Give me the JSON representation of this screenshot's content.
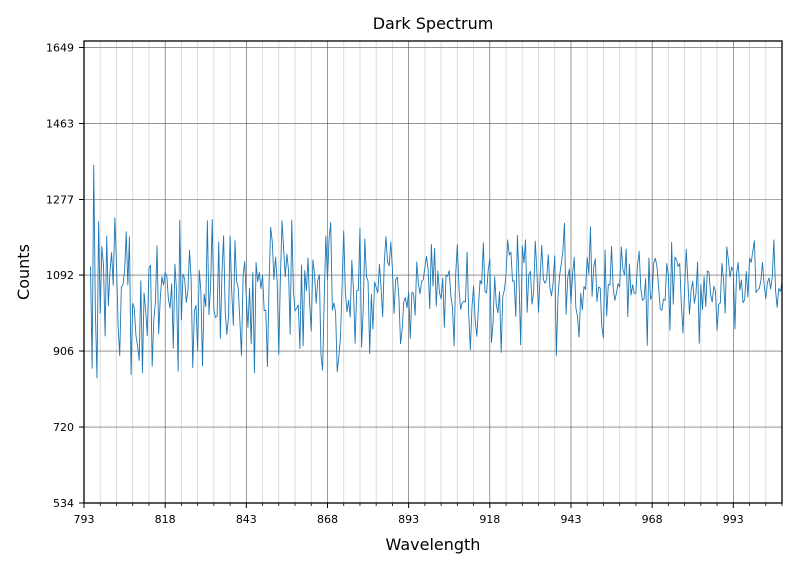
{
  "chart_data": {
    "type": "line",
    "title": "Dark Spectrum",
    "xlabel": "Wavelength",
    "ylabel": "Counts",
    "xlim": [
      793,
      1008
    ],
    "ylim": [
      534,
      1665
    ],
    "x_ticks": [
      793,
      818,
      843,
      868,
      893,
      918,
      943,
      968,
      993
    ],
    "y_ticks": [
      534,
      720,
      906,
      1092,
      1277,
      1463,
      1649
    ],
    "major_grid": true,
    "minor_grid": true,
    "minor_x_step": 5,
    "series": [
      {
        "color": "#1f77b4",
        "x_start": 795,
        "x_step": 0.5,
        "values": [
          1113,
          864,
          1361,
          1005,
          840,
          1223,
          999,
          1162,
          1117,
          943,
          1188,
          1017,
          1100,
          1147,
          1067,
          1232,
          1122,
          967,
          895,
          1062,
          1068,
          1102,
          1198,
          1068,
          1186,
          848,
          1023,
          1011,
          944,
          919,
          883,
          1078,
          853,
          1048,
          1004,
          944,
          1108,
          1116,
          869,
          982,
          1026,
          1164,
          948,
          1036,
          1088,
          1068,
          1098,
          1091,
          1033,
          1011,
          1071,
          913,
          1119,
          1054,
          857,
          1227,
          982,
          1094,
          1083,
          1025,
          1053,
          1153,
          1082,
          865,
          1005,
          1018,
          907,
          1104,
          1054,
          870,
          1045,
          1015,
          1225,
          995,
          1067,
          1228,
          1007,
          988,
          991,
          1173,
          937,
          1097,
          1188,
          1003,
          947,
          989,
          1187,
          1052,
          969,
          1176,
          1076,
          1061,
          983,
          895,
          1089,
          1125,
          1034,
          964,
          1060,
          924,
          1098,
          853,
          1123,
          1076,
          1099,
          1059,
          1091,
          1005,
          1006,
          868,
          1067,
          1209,
          1173,
          1081,
          1136,
          1076,
          898,
          1087,
          1225,
          1155,
          1088,
          1143,
          1104,
          947,
          1227,
          1053,
          1004,
          1011,
          1019,
          912,
          1116,
          919,
          1103,
          1054,
          1134,
          1023,
          955,
          1129,
          1095,
          1023,
          1079,
          1093,
          896,
          859,
          1037,
          1188,
          1081,
          1180,
          1221,
          1006,
          1024,
          1000,
          855,
          893,
          938,
          1066,
          1200,
          1052,
          1002,
          1030,
          989,
          1128,
          1057,
          925,
          1054,
          1054,
          1206,
          916,
          1004,
          1180,
          1088,
          1077,
          900,
          1045,
          960,
          1075,
          1062,
          1049,
          1118,
          1062,
          990,
          1124,
          1186,
          1124,
          1115,
          1173,
          1107,
          998,
          1081,
          1087,
          1038,
          924,
          959,
          1027,
          1037,
          1012,
          1050,
          937,
          1050,
          1047,
          994,
          1124,
          1071,
          1046,
          1077,
          1081,
          1111,
          1138,
          1105,
          1010,
          1167,
          1065,
          1157,
          1016,
          1102,
          1049,
          1034,
          1084,
          964,
          1091,
          1089,
          1103,
          1041,
          1012,
          919,
          1096,
          1167,
          1061,
          1008,
          1024,
          1028,
          1026,
          1148,
          996,
          909,
          1013,
          1065,
          980,
          942,
          1014,
          1079,
          1070,
          1171,
          1052,
          1048,
          1104,
          1132,
          927,
          975,
          1088,
          1019,
          1000,
          1051,
          903,
          1040,
          1056,
          1094,
          1178,
          1141,
          1148,
          1077,
          1078,
          991,
          1189,
          1078,
          921,
          1164,
          1122,
          1178,
          1001,
          1093,
          1101,
          1021,
          1050,
          1175,
          1100,
          1001,
          1089,
          1165,
          1081,
          1072,
          1081,
          1142,
          1062,
          1041,
          1073,
          1139,
          895,
          1039,
          1091,
          1119,
          1149,
          1219,
          996,
          1085,
          1107,
          1023,
          1096,
          1135,
          1012,
          991,
          940,
          1048,
          1007,
          1064,
          1057,
          1135,
          1095,
          1210,
          1040,
          1111,
          1132,
          1027,
          1063,
          1060,
          966,
          938,
          1153,
          992,
          1069,
          1068,
          1162,
          1060,
          1030,
          1048,
          1071,
          1063,
          1161,
          1105,
          1093,
          1156,
          990,
          1119,
          1043,
          1068,
          1047,
          1048,
          1117,
          1150,
          1060,
          1030,
          1034,
          1083,
          920,
          1134,
          1033,
          1044,
          1122,
          1133,
          1112,
          1063,
          1009,
          1006,
          1033,
          1030,
          1120,
          1092,
          957,
          1172,
          1021,
          1136,
          1130,
          1113,
          1120,
          1020,
          950,
          1058,
          1155,
          1078,
          996,
          1054,
          1077,
          1023,
          1047,
          1124,
          925,
          1069,
          1008,
          1088,
          1015,
          1102,
          1099,
          1045,
          1026,
          1065,
          1053,
          957,
          1020,
          1024,
          1121,
          1080,
          999,
          1161,
          1128,
          1087,
          1112,
          1101,
          960,
          1096,
          1123,
          1055,
          1080,
          1024,
          1032,
          1101,
          1038,
          1133,
          1123,
          1150,
          1176,
          1049,
          1055,
          1059,
          1079,
          1123,
          1068,
          1034,
          1073,
          1085,
          1058,
          1087,
          1178,
          1056,
          1013,
          1059,
          1052,
          1076,
          1062,
          1069,
          1087,
          1015,
          1022,
          1088,
          1106,
          1141,
          1028,
          1066,
          1095,
          1089,
          1047,
          1045,
          1068,
          1055,
          1038,
          1000,
          1059,
          1094,
          1000,
          1028,
          1069,
          1096,
          1020,
          1074,
          1001,
          1034,
          1112,
          1001,
          1091,
          1015,
          1096,
          1084,
          1016,
          1082,
          1066,
          1043,
          1080,
          1054,
          1054,
          1109,
          1028,
          1022,
          1055,
          1011,
          1110,
          1054,
          1021,
          1015,
          1074,
          1092
        ]
      }
    ]
  }
}
